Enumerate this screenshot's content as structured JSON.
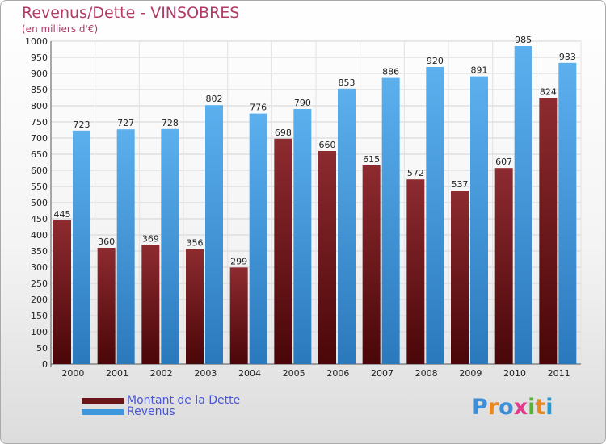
{
  "title": "Revenus/Dette - VINSOBRES",
  "subtitle": "(en milliers d'€)",
  "logo": {
    "text": "Proxiti",
    "colors": [
      "#3b8fd8",
      "#e8871e",
      "#3b8fd8",
      "#e23a8c",
      "#53b432",
      "#e8871e",
      "#1f9bd6"
    ]
  },
  "chart_data": {
    "type": "bar",
    "categories": [
      "2000",
      "2001",
      "2002",
      "2003",
      "2004",
      "2005",
      "2006",
      "2007",
      "2008",
      "2009",
      "2010",
      "2011"
    ],
    "series": [
      {
        "name": "Montant de la Dette",
        "color": "#6b1518",
        "values": [
          445,
          360,
          369,
          356,
          299,
          698,
          660,
          615,
          572,
          537,
          607,
          824
        ]
      },
      {
        "name": "Revenus",
        "color": "#3d97dc",
        "values": [
          723,
          727,
          728,
          802,
          776,
          790,
          853,
          886,
          920,
          891,
          985,
          933
        ]
      }
    ],
    "ylim": [
      0,
      1000
    ],
    "yticks": [
      0,
      50,
      100,
      150,
      200,
      250,
      300,
      350,
      400,
      450,
      500,
      550,
      600,
      650,
      700,
      750,
      800,
      850,
      900,
      950,
      1000
    ],
    "grid": true,
    "legend": "bottom-left"
  }
}
